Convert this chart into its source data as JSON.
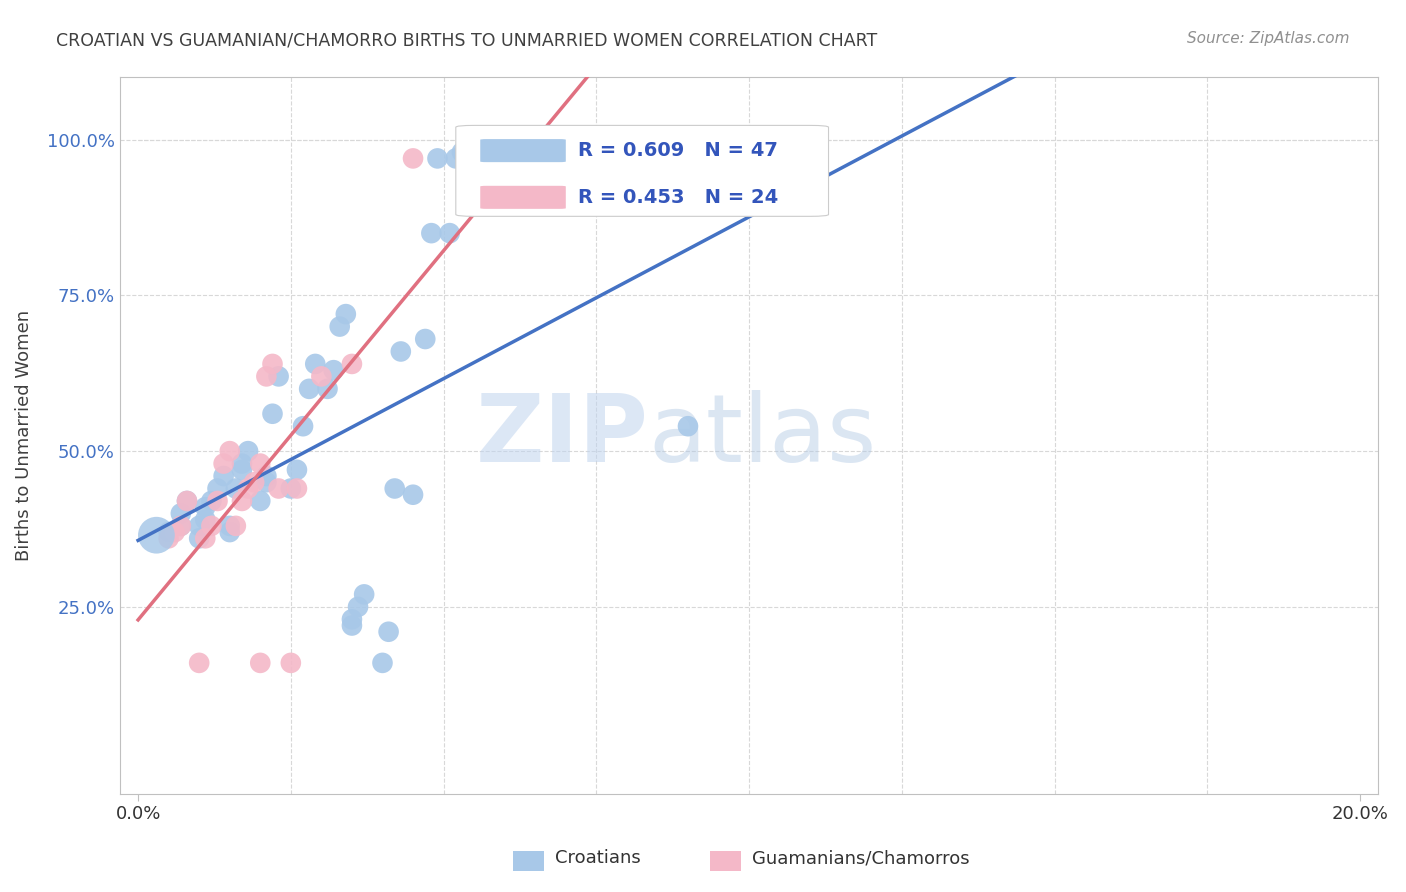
{
  "title": "CROATIAN VS GUAMANIAN/CHAMORRO BIRTHS TO UNMARRIED WOMEN CORRELATION CHART",
  "source": "Source: ZipAtlas.com",
  "ylabel": "Births to Unmarried Women",
  "watermark_zip": "ZIP",
  "watermark_atlas": "atlas",
  "legend_r1": "R = 0.609",
  "legend_n1": "N = 47",
  "legend_r2": "R = 0.453",
  "legend_n2": "N = 24",
  "legend_label_croatians": "Croatians",
  "legend_label_guamanian": "Guamanians/Chamorros",
  "color_croatian": "#a8c8e8",
  "color_guamanian": "#f4b8c8",
  "color_croatian_line": "#4472c4",
  "color_guamanian_line": "#e07080",
  "title_color": "#404040",
  "source_color": "#909090",
  "axis_color": "#c0c0c0",
  "grid_color": "#d8d8d8",
  "legend_text_color": "#3355bb",
  "croatian_points": [
    [
      0.5,
      37.0
    ],
    [
      0.7,
      38.0
    ],
    [
      0.7,
      40.0
    ],
    [
      0.8,
      42.0
    ],
    [
      1.0,
      36.0
    ],
    [
      1.0,
      38.0
    ],
    [
      1.1,
      39.0
    ],
    [
      1.1,
      41.0
    ],
    [
      1.2,
      42.0
    ],
    [
      1.3,
      44.0
    ],
    [
      1.4,
      46.0
    ],
    [
      1.5,
      37.0
    ],
    [
      1.5,
      38.0
    ],
    [
      1.6,
      44.0
    ],
    [
      1.7,
      47.0
    ],
    [
      1.7,
      48.0
    ],
    [
      1.8,
      50.0
    ],
    [
      2.0,
      42.0
    ],
    [
      2.1,
      45.0
    ],
    [
      2.1,
      46.0
    ],
    [
      2.2,
      56.0
    ],
    [
      2.3,
      62.0
    ],
    [
      2.5,
      44.0
    ],
    [
      2.6,
      47.0
    ],
    [
      2.7,
      54.0
    ],
    [
      2.8,
      60.0
    ],
    [
      2.9,
      64.0
    ],
    [
      3.1,
      60.0
    ],
    [
      3.2,
      63.0
    ],
    [
      3.3,
      70.0
    ],
    [
      3.4,
      72.0
    ],
    [
      3.5,
      22.0
    ],
    [
      3.5,
      23.0
    ],
    [
      3.6,
      25.0
    ],
    [
      3.7,
      27.0
    ],
    [
      4.0,
      16.0
    ],
    [
      4.1,
      21.0
    ],
    [
      4.2,
      44.0
    ],
    [
      4.3,
      66.0
    ],
    [
      4.5,
      43.0
    ],
    [
      4.7,
      68.0
    ],
    [
      4.8,
      85.0
    ],
    [
      4.9,
      97.0
    ],
    [
      5.1,
      85.0
    ],
    [
      5.2,
      97.0
    ],
    [
      5.3,
      98.0
    ],
    [
      9.0,
      54.0
    ]
  ],
  "guamanian_points": [
    [
      0.5,
      36.0
    ],
    [
      0.6,
      37.0
    ],
    [
      0.7,
      38.0
    ],
    [
      0.8,
      42.0
    ],
    [
      1.0,
      16.0
    ],
    [
      1.1,
      36.0
    ],
    [
      1.2,
      38.0
    ],
    [
      1.3,
      42.0
    ],
    [
      1.4,
      48.0
    ],
    [
      1.5,
      50.0
    ],
    [
      1.6,
      38.0
    ],
    [
      1.7,
      42.0
    ],
    [
      1.8,
      44.0
    ],
    [
      1.9,
      45.0
    ],
    [
      2.0,
      48.0
    ],
    [
      2.1,
      62.0
    ],
    [
      2.2,
      64.0
    ],
    [
      2.0,
      16.0
    ],
    [
      2.3,
      44.0
    ],
    [
      2.5,
      16.0
    ],
    [
      2.6,
      44.0
    ],
    [
      3.0,
      62.0
    ],
    [
      3.5,
      64.0
    ],
    [
      4.5,
      97.0
    ]
  ],
  "xlim_min": 0.0,
  "xlim_max": 20.0,
  "ylim_min": 0.0,
  "ylim_max": 110.0,
  "xticks": [
    0.0,
    20.0
  ],
  "xtick_labels": [
    "0.0%",
    "20.0%"
  ],
  "yticks": [
    25.0,
    50.0,
    75.0,
    100.0
  ],
  "ytick_labels": [
    "25.0%",
    "50.0%",
    "75.0%",
    "100.0%"
  ],
  "figsize": [
    14.06,
    8.92
  ],
  "dpi": 100
}
